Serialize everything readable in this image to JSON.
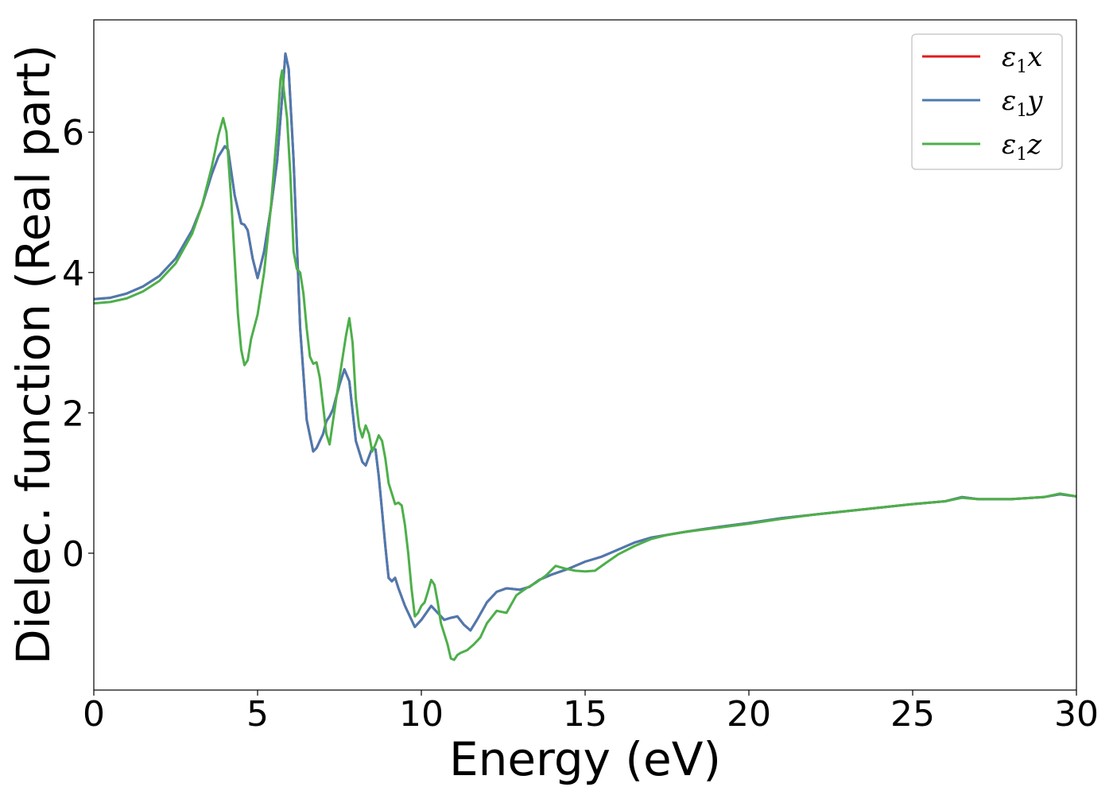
{
  "chart_data": {
    "type": "line",
    "title": "",
    "xlabel": "Energy (eV)",
    "ylabel": "Dielec. function (Real part)",
    "xlim": [
      0,
      30
    ],
    "ylim": [
      -1.95,
      7.6
    ],
    "xticks": [
      0,
      5,
      10,
      15,
      20,
      25,
      30
    ],
    "yticks": [
      0,
      2,
      4,
      6
    ],
    "grid": false,
    "legend_position": "top-right",
    "series": [
      {
        "name": "ε1x",
        "legend_symbol": "ε",
        "legend_sub": "1",
        "legend_var": "x",
        "color": "#e41a1c",
        "x": [
          0,
          0.5,
          1,
          1.5,
          2,
          2.5,
          3,
          3.3,
          3.6,
          3.8,
          4,
          4.1,
          4.3,
          4.5,
          4.6,
          4.7,
          4.85,
          5,
          5.2,
          5.4,
          5.6,
          5.75,
          5.85,
          5.95,
          6.1,
          6.3,
          6.5,
          6.7,
          6.8,
          7,
          7.1,
          7.2,
          7.3,
          7.5,
          7.65,
          7.8,
          8,
          8.2,
          8.3,
          8.5,
          8.6,
          8.7,
          8.8,
          8.9,
          9,
          9.1,
          9.2,
          9.3,
          9.5,
          9.8,
          10,
          10.3,
          10.5,
          10.7,
          10.9,
          11.1,
          11.3,
          11.5,
          11.7,
          12,
          12.3,
          12.6,
          13,
          13.3,
          13.6,
          14,
          14.5,
          15,
          15.5,
          16,
          16.5,
          17,
          17.5,
          18,
          19,
          20,
          21,
          22,
          23,
          24,
          25,
          26,
          26.5,
          27,
          28,
          29,
          29.5,
          30
        ],
        "values": [
          3.62,
          3.64,
          3.7,
          3.8,
          3.95,
          4.2,
          4.6,
          4.95,
          5.4,
          5.65,
          5.8,
          5.75,
          5.1,
          4.7,
          4.68,
          4.6,
          4.2,
          3.92,
          4.3,
          4.9,
          5.6,
          6.5,
          7.12,
          6.9,
          5.6,
          3.2,
          1.9,
          1.45,
          1.5,
          1.7,
          1.88,
          1.95,
          2.05,
          2.4,
          2.62,
          2.45,
          1.6,
          1.3,
          1.25,
          1.5,
          1.48,
          1.1,
          0.6,
          0.1,
          -0.35,
          -0.4,
          -0.35,
          -0.5,
          -0.75,
          -1.05,
          -0.95,
          -0.75,
          -0.85,
          -0.95,
          -0.92,
          -0.9,
          -1.02,
          -1.1,
          -0.95,
          -0.7,
          -0.55,
          -0.5,
          -0.52,
          -0.48,
          -0.38,
          -0.3,
          -0.22,
          -0.12,
          -0.05,
          0.05,
          0.15,
          0.22,
          0.26,
          0.3,
          0.37,
          0.43,
          0.5,
          0.55,
          0.6,
          0.65,
          0.7,
          0.74,
          0.8,
          0.77,
          0.77,
          0.8,
          0.84,
          0.81
        ]
      },
      {
        "name": "ε1y",
        "legend_symbol": "ε",
        "legend_sub": "1",
        "legend_var": "y",
        "color": "#4b7ab0",
        "x": [
          0,
          0.5,
          1,
          1.5,
          2,
          2.5,
          3,
          3.3,
          3.6,
          3.8,
          4,
          4.1,
          4.3,
          4.5,
          4.6,
          4.7,
          4.85,
          5,
          5.2,
          5.4,
          5.6,
          5.75,
          5.85,
          5.95,
          6.1,
          6.3,
          6.5,
          6.7,
          6.8,
          7,
          7.1,
          7.2,
          7.3,
          7.5,
          7.65,
          7.8,
          8,
          8.2,
          8.3,
          8.5,
          8.6,
          8.7,
          8.8,
          8.9,
          9,
          9.1,
          9.2,
          9.3,
          9.5,
          9.8,
          10,
          10.3,
          10.5,
          10.7,
          10.9,
          11.1,
          11.3,
          11.5,
          11.7,
          12,
          12.3,
          12.6,
          13,
          13.3,
          13.6,
          14,
          14.5,
          15,
          15.5,
          16,
          16.5,
          17,
          17.5,
          18,
          19,
          20,
          21,
          22,
          23,
          24,
          25,
          26,
          26.5,
          27,
          28,
          29,
          29.5,
          30
        ],
        "values": [
          3.62,
          3.64,
          3.7,
          3.8,
          3.95,
          4.2,
          4.6,
          4.95,
          5.4,
          5.65,
          5.8,
          5.75,
          5.1,
          4.7,
          4.68,
          4.6,
          4.2,
          3.92,
          4.3,
          4.9,
          5.6,
          6.5,
          7.12,
          6.9,
          5.6,
          3.2,
          1.9,
          1.45,
          1.5,
          1.7,
          1.88,
          1.95,
          2.05,
          2.4,
          2.62,
          2.45,
          1.6,
          1.3,
          1.25,
          1.5,
          1.48,
          1.1,
          0.6,
          0.1,
          -0.35,
          -0.4,
          -0.35,
          -0.5,
          -0.75,
          -1.05,
          -0.95,
          -0.75,
          -0.85,
          -0.95,
          -0.92,
          -0.9,
          -1.02,
          -1.1,
          -0.95,
          -0.7,
          -0.55,
          -0.5,
          -0.52,
          -0.48,
          -0.38,
          -0.3,
          -0.22,
          -0.12,
          -0.05,
          0.05,
          0.15,
          0.22,
          0.26,
          0.3,
          0.37,
          0.43,
          0.5,
          0.55,
          0.6,
          0.65,
          0.7,
          0.74,
          0.8,
          0.77,
          0.77,
          0.8,
          0.84,
          0.81
        ]
      },
      {
        "name": "ε1z",
        "legend_symbol": "ε",
        "legend_sub": "1",
        "legend_var": "z",
        "color": "#4daf4a",
        "x": [
          0,
          0.5,
          1,
          1.5,
          2,
          2.5,
          3,
          3.3,
          3.6,
          3.8,
          3.95,
          4.05,
          4.2,
          4.4,
          4.5,
          4.6,
          4.7,
          4.8,
          5,
          5.2,
          5.4,
          5.6,
          5.7,
          5.75,
          5.8,
          5.9,
          6,
          6.1,
          6.2,
          6.3,
          6.4,
          6.5,
          6.6,
          6.7,
          6.8,
          6.9,
          7,
          7.1,
          7.2,
          7.4,
          7.6,
          7.7,
          7.8,
          7.9,
          8,
          8.1,
          8.2,
          8.3,
          8.4,
          8.5,
          8.6,
          8.7,
          8.8,
          8.9,
          9,
          9.2,
          9.3,
          9.4,
          9.5,
          9.6,
          9.7,
          9.8,
          9.9,
          10,
          10.1,
          10.2,
          10.3,
          10.4,
          10.5,
          10.6,
          10.8,
          10.9,
          11,
          11.1,
          11.2,
          11.4,
          11.6,
          11.8,
          12,
          12.3,
          12.6,
          12.9,
          13.2,
          13.5,
          13.8,
          14.1,
          14.4,
          14.7,
          15,
          15.3,
          15.6,
          16,
          16.5,
          17,
          17.5,
          18,
          19,
          20,
          21,
          22,
          23,
          24,
          25,
          26,
          26.5,
          27,
          28,
          29,
          29.5,
          30
        ],
        "values": [
          3.56,
          3.58,
          3.63,
          3.73,
          3.88,
          4.13,
          4.55,
          4.95,
          5.5,
          5.95,
          6.2,
          6.0,
          5.0,
          3.4,
          2.9,
          2.68,
          2.75,
          3.05,
          3.4,
          4.0,
          4.9,
          6.05,
          6.75,
          6.88,
          6.6,
          6.2,
          5.4,
          4.3,
          4.05,
          4.0,
          3.7,
          3.2,
          2.8,
          2.7,
          2.72,
          2.5,
          2.1,
          1.7,
          1.55,
          2.2,
          2.8,
          3.1,
          3.35,
          3.0,
          2.2,
          1.8,
          1.65,
          1.82,
          1.7,
          1.45,
          1.55,
          1.68,
          1.6,
          1.35,
          1.0,
          0.7,
          0.72,
          0.68,
          0.4,
          0.0,
          -0.5,
          -0.9,
          -0.85,
          -0.75,
          -0.7,
          -0.55,
          -0.38,
          -0.45,
          -0.7,
          -1.0,
          -1.3,
          -1.5,
          -1.52,
          -1.45,
          -1.42,
          -1.38,
          -1.3,
          -1.2,
          -1.0,
          -0.82,
          -0.85,
          -0.6,
          -0.5,
          -0.42,
          -0.32,
          -0.18,
          -0.22,
          -0.25,
          -0.26,
          -0.25,
          -0.15,
          -0.02,
          0.1,
          0.2,
          0.26,
          0.3,
          0.36,
          0.42,
          0.49,
          0.55,
          0.6,
          0.65,
          0.7,
          0.74,
          0.79,
          0.77,
          0.77,
          0.8,
          0.85,
          0.81
        ]
      }
    ]
  }
}
